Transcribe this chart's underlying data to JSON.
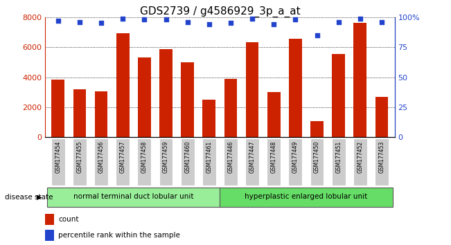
{
  "title": "GDS2739 / g4586929_3p_a_at",
  "categories": [
    "GSM177454",
    "GSM177455",
    "GSM177456",
    "GSM177457",
    "GSM177458",
    "GSM177459",
    "GSM177460",
    "GSM177461",
    "GSM177446",
    "GSM177447",
    "GSM177448",
    "GSM177449",
    "GSM177450",
    "GSM177451",
    "GSM177452",
    "GSM177453"
  ],
  "counts": [
    3850,
    3200,
    3050,
    6950,
    5300,
    5850,
    5000,
    2500,
    3900,
    6350,
    3000,
    6550,
    1050,
    5550,
    7600,
    2700
  ],
  "percentiles": [
    97,
    96,
    95,
    99,
    98,
    98,
    96,
    94,
    95,
    99,
    94,
    98,
    85,
    96,
    99,
    96
  ],
  "bar_color": "#cc2200",
  "dot_color": "#2244cc",
  "ylim_left": [
    0,
    8000
  ],
  "ylim_right": [
    0,
    100
  ],
  "yticks_left": [
    0,
    2000,
    4000,
    6000,
    8000
  ],
  "yticks_right": [
    0,
    25,
    50,
    75,
    100
  ],
  "yticklabels_right": [
    "0",
    "25",
    "50",
    "75",
    "100%"
  ],
  "groups": [
    {
      "label": "normal terminal duct lobular unit",
      "start": 0,
      "end": 8,
      "color": "#99ee99"
    },
    {
      "label": "hyperplastic enlarged lobular unit",
      "start": 8,
      "end": 16,
      "color": "#66dd66"
    }
  ],
  "disease_state_label": "disease state",
  "legend_count_label": "count",
  "legend_percentile_label": "percentile rank within the sample",
  "background_color": "#ffffff",
  "tick_label_bg": "#cccccc",
  "title_fontsize": 11,
  "axis_fontsize": 8,
  "label_fontsize": 8.5
}
